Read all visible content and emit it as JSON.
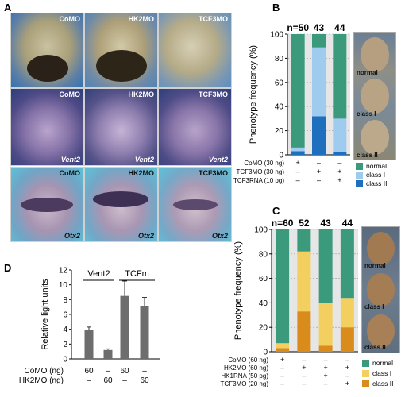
{
  "panel_labels": {
    "a": "A",
    "b": "B",
    "c": "C",
    "d": "D"
  },
  "panel_a": {
    "columns": [
      "CoMO",
      "HK2MO",
      "TCF3MO"
    ],
    "rows": [
      {
        "markers": [
          "",
          "",
          ""
        ],
        "bg": "#2f73b4"
      },
      {
        "markers": [
          "Vent2",
          "Vent2",
          "Vent2"
        ],
        "bg": "#3a4d8c"
      },
      {
        "markers": [
          "Otx2",
          "Otx2",
          "Otx2"
        ],
        "bg": "#5cc3d8"
      }
    ]
  },
  "chart_data": [
    {
      "type": "bar",
      "panel": "B",
      "stacked": true,
      "n_labels": [
        "n=50",
        "43",
        "44"
      ],
      "ylabel": "Phenotype frequency (%)",
      "ylim": [
        0,
        100
      ],
      "yticks": [
        "0",
        "20",
        "40",
        "60",
        "80",
        "100"
      ],
      "conditions": [
        {
          "label": "CoMO (30 ng)",
          "marks": [
            "+",
            "–",
            "–"
          ]
        },
        {
          "label": "TCF3MO (30 ng)",
          "marks": [
            "–",
            "+",
            "+"
          ]
        },
        {
          "label": "TCF3RNA (10 pg)",
          "marks": [
            "–",
            "–",
            "+"
          ]
        }
      ],
      "series": [
        {
          "name": "class II",
          "color": "#1f6fbf",
          "values": [
            3,
            32,
            2
          ]
        },
        {
          "name": "class I",
          "color": "#9fcbef",
          "values": [
            3,
            57,
            28
          ]
        },
        {
          "name": "normal",
          "color": "#3c9a7c",
          "values": [
            94,
            11,
            70
          ]
        }
      ],
      "legend_order": [
        "normal",
        "class I",
        "class II"
      ],
      "side_labels": [
        "normal",
        "class I",
        "class II"
      ]
    },
    {
      "type": "bar",
      "panel": "C",
      "stacked": true,
      "n_labels": [
        "n=60",
        "52",
        "43",
        "44"
      ],
      "ylabel": "Phenotype frequency (%)",
      "ylim": [
        0,
        100
      ],
      "yticks": [
        "0",
        "20",
        "40",
        "60",
        "80",
        "100"
      ],
      "conditions": [
        {
          "label": "CoMO (60 ng)",
          "marks": [
            "+",
            "–",
            "–",
            "–"
          ]
        },
        {
          "label": "HK2MO (60 ng)",
          "marks": [
            "–",
            "+",
            "+",
            "+"
          ]
        },
        {
          "label": "HK1RNA (50 pg)",
          "marks": [
            "–",
            "–",
            "+",
            "–"
          ]
        },
        {
          "label": "TCF3MO (20 ng)",
          "marks": [
            "–",
            "–",
            "–",
            "+"
          ]
        }
      ],
      "series": [
        {
          "name": "class II",
          "color": "#d98b1c",
          "values": [
            3,
            33,
            5,
            20
          ]
        },
        {
          "name": "class I",
          "color": "#f2cf5e",
          "values": [
            4,
            49,
            35,
            24
          ]
        },
        {
          "name": "normal",
          "color": "#3c9a7c",
          "values": [
            93,
            18,
            60,
            56
          ]
        }
      ],
      "legend_order": [
        "normal",
        "class I",
        "class II"
      ],
      "side_labels": [
        "normal",
        "class I",
        "class II"
      ]
    },
    {
      "type": "bar",
      "panel": "D",
      "ylabel": "Relative light units",
      "ylim": [
        0,
        12
      ],
      "yticks": [
        "0",
        "2",
        "4",
        "6",
        "8",
        "10",
        "12"
      ],
      "groups": [
        "Vent2",
        "TCFm"
      ],
      "values": [
        3.9,
        1.2,
        8.5,
        7.1
      ],
      "errors": [
        0.4,
        0.15,
        2.0,
        1.2
      ],
      "color": "#6d6d6d",
      "conditions": [
        {
          "label": "CoMO (ng)",
          "marks": [
            "60",
            "–",
            "60",
            "–"
          ]
        },
        {
          "label": "HK2MO (ng)",
          "marks": [
            "–",
            "60",
            "–",
            "60"
          ]
        }
      ]
    }
  ]
}
